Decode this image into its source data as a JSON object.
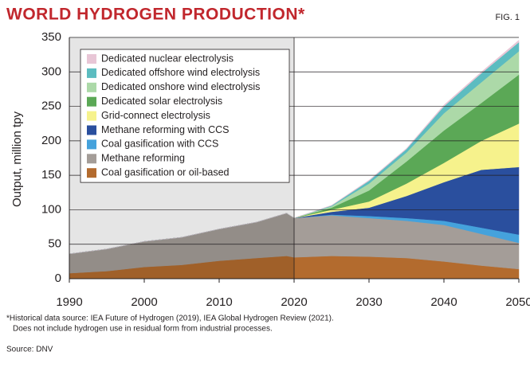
{
  "chart_data": {
    "type": "stacked-area",
    "title": "WORLD HYDROGEN PRODUCTION*",
    "figure_label": "FIG. 1",
    "y_label": "Output, million tpy",
    "footnote": [
      "*Historical data source: IEA Future of Hydrogen (2019), IEA Global Hydrogen Review (2021).",
      "Does not include hydrogen use in residual form from industrial processes."
    ],
    "source": "Source: DNV",
    "x": [
      1990,
      1995,
      2000,
      2005,
      2010,
      2015,
      2019,
      2020,
      2025,
      2030,
      2035,
      2040,
      2045,
      2050
    ],
    "xlim": [
      1990,
      2050
    ],
    "xticks": [
      1990,
      2000,
      2010,
      2020,
      2030,
      2040,
      2050
    ],
    "ylim": [
      0,
      350
    ],
    "yticks": [
      0,
      50,
      100,
      150,
      200,
      250,
      300,
      350
    ],
    "grid": true,
    "legend": "upper left",
    "series": [
      {
        "name": "Coal gasification or oil-based",
        "color": "#b36b2e",
        "values": [
          8,
          11,
          17,
          20,
          26,
          30,
          33,
          31,
          33,
          32,
          30,
          25,
          19,
          14
        ]
      },
      {
        "name": "Methane reforming",
        "color": "#a49d98",
        "values": [
          28,
          32,
          37,
          40,
          46,
          52,
          62,
          57,
          59,
          56,
          54,
          53,
          46,
          38
        ]
      },
      {
        "name": "Coal gasification with CCS",
        "color": "#45a2dc",
        "values": [
          0,
          0,
          0,
          0,
          0,
          0,
          0,
          0,
          1,
          3,
          4,
          6,
          9,
          12
        ]
      },
      {
        "name": "Methane reforming with CCS",
        "color": "#2a4f9e",
        "values": [
          0,
          0,
          0,
          0,
          0,
          0,
          0,
          0,
          4,
          12,
          32,
          56,
          84,
          98
        ]
      },
      {
        "name": "Grid-connect electrolysis",
        "color": "#f6f28c",
        "values": [
          0,
          0,
          0,
          0,
          0,
          0,
          0,
          0,
          3,
          9,
          18,
          28,
          42,
          63
        ]
      },
      {
        "name": "Dedicated solar electrolysis",
        "color": "#5ba856",
        "values": [
          0,
          0,
          0,
          0,
          0,
          0,
          0,
          0,
          3,
          16,
          32,
          47,
          55,
          71
        ]
      },
      {
        "name": "Dedicated onshore wind electrolysis",
        "color": "#acd9a8",
        "values": [
          0,
          0,
          0,
          0,
          0,
          0,
          0,
          0,
          2,
          10,
          13,
          25,
          30,
          34
        ]
      },
      {
        "name": "Dedicated offshore wind electrolysis",
        "color": "#5cbcc0",
        "values": [
          0,
          0,
          0,
          0,
          0,
          0,
          0,
          0,
          1,
          4,
          5,
          10,
          13,
          13
        ]
      },
      {
        "name": "Dedicated nuclear electrolysis",
        "color": "#e8c6d6",
        "values": [
          0,
          0,
          0,
          0,
          0,
          0,
          0,
          0,
          0.5,
          1,
          1,
          2,
          2,
          3
        ]
      }
    ]
  }
}
